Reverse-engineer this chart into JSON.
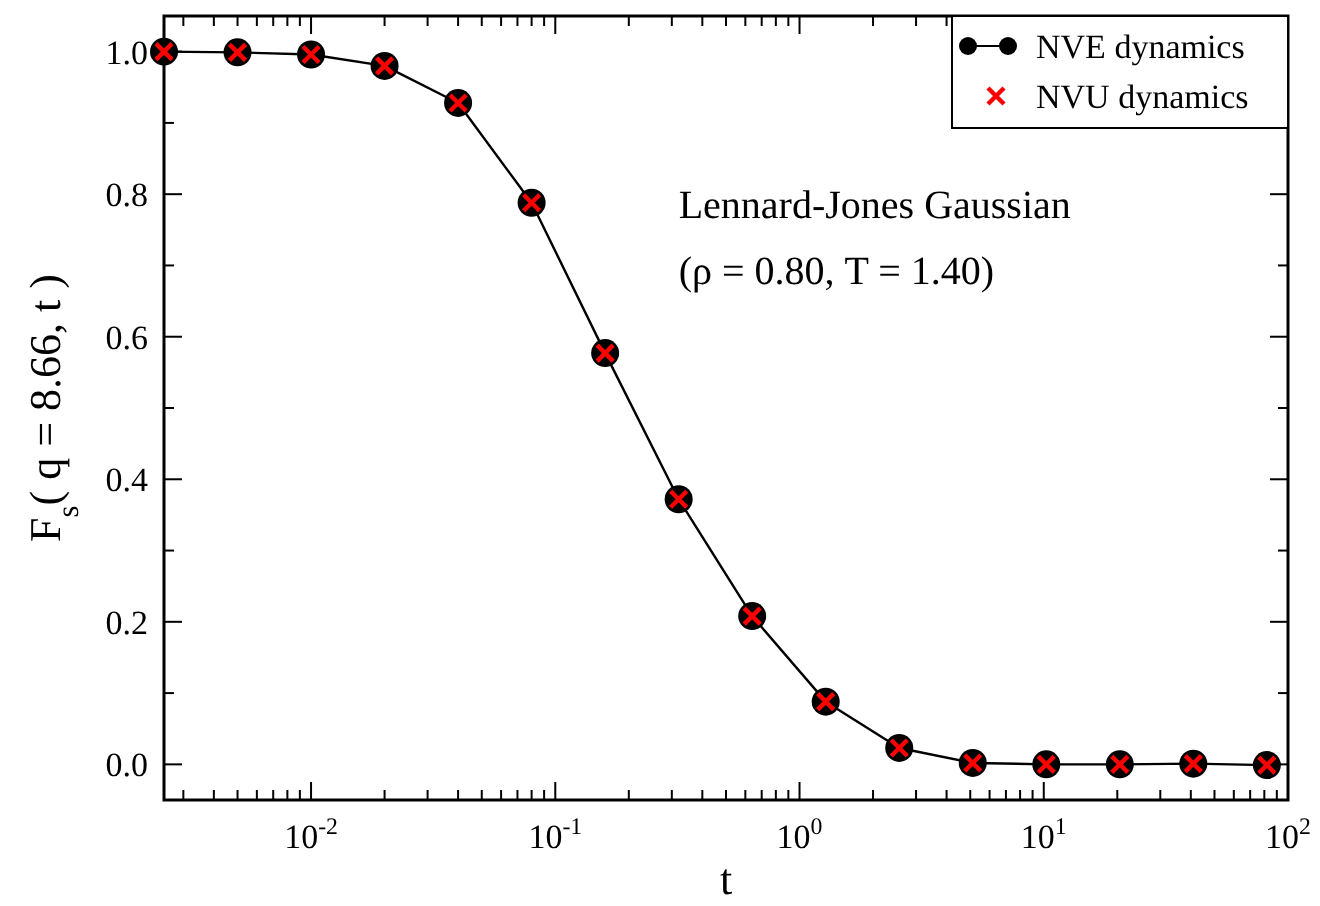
{
  "chart_data": {
    "type": "line",
    "xlabel": "t",
    "ylabel": "F$_{s}$( q = 8.66, t )",
    "log": "x",
    "grid": false,
    "legend": "top right",
    "x": [
      0.0025,
      0.005,
      0.01,
      0.02,
      0.04,
      0.08,
      0.16,
      0.32,
      0.64,
      1.28,
      2.56,
      5.12,
      10.24,
      20.48,
      40.96,
      81.92
    ],
    "xlim": [
      0.0025,
      100
    ],
    "xticks": [
      {
        "value": 0.003,
        "label": null
      },
      {
        "value": 0.004,
        "label": null
      },
      {
        "value": 0.005,
        "label": null
      },
      {
        "value": 0.006,
        "label": null
      },
      {
        "value": 0.007,
        "label": null
      },
      {
        "value": 0.008,
        "label": null
      },
      {
        "value": 0.009,
        "label": null
      },
      {
        "value": 0.01,
        "label": "10$^{-2}$"
      },
      {
        "value": 0.02,
        "label": null
      },
      {
        "value": 0.03,
        "label": null
      },
      {
        "value": 0.04,
        "label": null
      },
      {
        "value": 0.05,
        "label": null
      },
      {
        "value": 0.06,
        "label": null
      },
      {
        "value": 0.07,
        "label": null
      },
      {
        "value": 0.08,
        "label": null
      },
      {
        "value": 0.09,
        "label": null
      },
      {
        "value": 0.1,
        "label": "10$^{-1}$"
      },
      {
        "value": 0.2,
        "label": null
      },
      {
        "value": 0.3,
        "label": null
      },
      {
        "value": 0.4,
        "label": null
      },
      {
        "value": 0.5,
        "label": null
      },
      {
        "value": 0.6,
        "label": null
      },
      {
        "value": 0.7,
        "label": null
      },
      {
        "value": 0.8,
        "label": null
      },
      {
        "value": 0.9,
        "label": null
      },
      {
        "value": 1,
        "label": "10$^{0}$"
      },
      {
        "value": 2,
        "label": null
      },
      {
        "value": 3,
        "label": null
      },
      {
        "value": 4,
        "label": null
      },
      {
        "value": 5,
        "label": null
      },
      {
        "value": 6,
        "label": null
      },
      {
        "value": 7,
        "label": null
      },
      {
        "value": 8,
        "label": null
      },
      {
        "value": 9,
        "label": null
      },
      {
        "value": 10,
        "label": "10$^{1}$"
      },
      {
        "value": 20,
        "label": null
      },
      {
        "value": 30,
        "label": null
      },
      {
        "value": 40,
        "label": null
      },
      {
        "value": 50,
        "label": null
      },
      {
        "value": 60,
        "label": null
      },
      {
        "value": 70,
        "label": null
      },
      {
        "value": 80,
        "label": null
      },
      {
        "value": 90,
        "label": null
      },
      {
        "value": 100,
        "label": "10$^{2}$"
      }
    ],
    "ylim": [
      -0.05,
      1.05
    ],
    "yticks": [
      {
        "value": 0,
        "label": "0.0"
      },
      {
        "value": 0.1,
        "label": null
      },
      {
        "value": 0.2,
        "label": "0.2"
      },
      {
        "value": 0.3,
        "label": null
      },
      {
        "value": 0.4,
        "label": "0.4"
      },
      {
        "value": 0.5,
        "label": null
      },
      {
        "value": 0.6,
        "label": "0.6"
      },
      {
        "value": 0.7,
        "label": null
      },
      {
        "value": 0.8,
        "label": "0.8"
      },
      {
        "value": 0.9,
        "label": null
      },
      {
        "value": 1,
        "label": "1.0"
      }
    ],
    "annotations": [
      "Lennard-Jones Gaussian",
      "(ρ = 0.80, T = 1.40)"
    ],
    "series": [
      {
        "name": "NVE dynamics",
        "marker": "circle",
        "line_style": "solid",
        "color": "#000000",
        "values": [
          1.0,
          0.999,
          0.996,
          0.98,
          0.928,
          0.788,
          0.577,
          0.372,
          0.208,
          0.088,
          0.023,
          0.002,
          0.0,
          0.0,
          0.001,
          -0.001
        ]
      },
      {
        "name": "NVU dynamics",
        "type": "scatter",
        "marker": "cross",
        "color": "#ff0000",
        "values": [
          1.0,
          0.999,
          0.996,
          0.98,
          0.928,
          0.788,
          0.577,
          0.372,
          0.208,
          0.088,
          0.023,
          0.002,
          0.0,
          0.0,
          0.001,
          -0.001
        ]
      }
    ]
  }
}
